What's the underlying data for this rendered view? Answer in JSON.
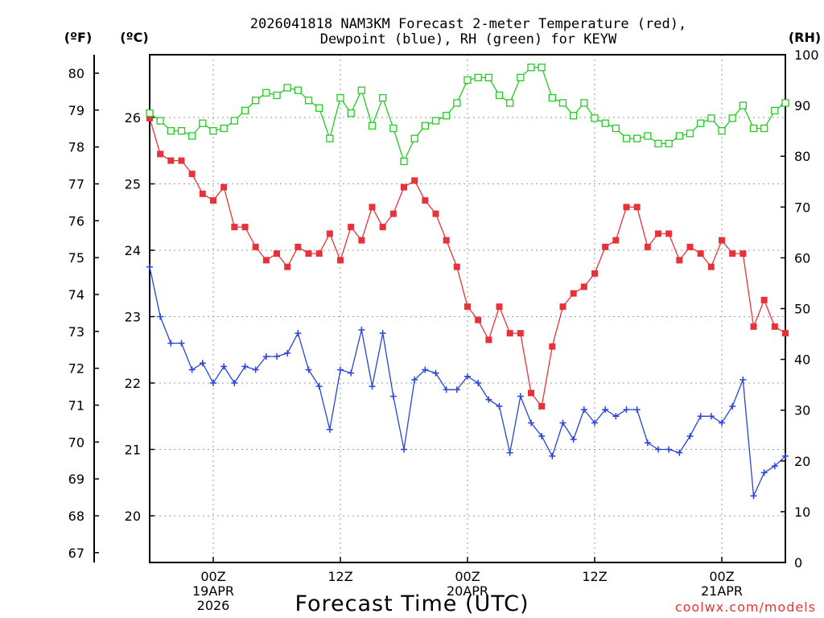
{
  "chart_data": {
    "type": "line",
    "title_lines": [
      "2026041818 NAM3KM Forecast 2-meter Temperature (red),",
      "Dewpoint (blue), RH (green) for KEYW"
    ],
    "xlabel": "Forecast Time (UTC)",
    "credit": "coolwx.com/models",
    "units": {
      "fahrenheit": "(ºF)",
      "celsius": "(ºC)",
      "rh": "(RH)"
    },
    "x_ticks": [
      {
        "hour": 6,
        "lines": [
          "00Z",
          "19APR",
          "2026"
        ]
      },
      {
        "hour": 18,
        "lines": [
          "12Z"
        ]
      },
      {
        "hour": 30,
        "lines": [
          "00Z",
          "20APR"
        ]
      },
      {
        "hour": 42,
        "lines": [
          "12Z"
        ]
      },
      {
        "hour": 54,
        "lines": [
          "00Z",
          "21APR"
        ]
      }
    ],
    "x_range_hours": [
      0,
      60
    ],
    "y_celsius_range": [
      19.3,
      26.9
    ],
    "y_celsius_ticks": [
      20,
      21,
      22,
      23,
      24,
      25,
      26
    ],
    "y_fahrenheit_ticks": [
      67,
      68,
      69,
      70,
      71,
      72,
      73,
      74,
      75,
      76,
      77,
      78,
      79,
      80
    ],
    "y_rh_range": [
      0,
      100
    ],
    "y_rh_ticks": [
      0,
      10,
      20,
      30,
      40,
      50,
      60,
      70,
      80,
      90,
      100
    ],
    "grid": true,
    "time_step_hours": 1,
    "series": [
      {
        "name": "Temperature",
        "axis": "celsius",
        "color": "#e8323a",
        "marker": "filled-square",
        "values": [
          25.99,
          25.45,
          25.35,
          25.35,
          25.15,
          24.85,
          24.75,
          24.95,
          24.35,
          24.35,
          24.05,
          23.85,
          23.95,
          23.75,
          24.05,
          23.95,
          23.95,
          24.25,
          23.85,
          24.35,
          24.15,
          24.65,
          24.35,
          24.55,
          24.95,
          25.05,
          24.75,
          24.55,
          24.15,
          23.75,
          23.15,
          22.95,
          22.65,
          23.15,
          22.75,
          22.75,
          21.85,
          21.65,
          22.55,
          23.15,
          23.35,
          23.45,
          23.65,
          24.05,
          24.15,
          24.65,
          24.65,
          24.05,
          24.25,
          24.25,
          23.85,
          24.05,
          23.95,
          23.75,
          24.15,
          23.95,
          23.95,
          22.85,
          23.25,
          22.85,
          22.75
        ]
      },
      {
        "name": "Dewpoint",
        "axis": "celsius",
        "color": "#2844d8",
        "marker": "plus",
        "values": [
          23.75,
          23.0,
          22.6,
          22.6,
          22.2,
          22.3,
          22.0,
          22.25,
          22.0,
          22.25,
          22.2,
          22.4,
          22.4,
          22.45,
          22.75,
          22.2,
          21.95,
          21.3,
          22.2,
          22.15,
          22.8,
          21.95,
          22.75,
          21.8,
          21.0,
          22.05,
          22.2,
          22.15,
          21.9,
          21.9,
          22.1,
          22.0,
          21.75,
          21.65,
          20.95,
          21.8,
          21.4,
          21.2,
          20.9,
          21.4,
          21.15,
          21.6,
          21.4,
          21.6,
          21.5,
          21.6,
          21.6,
          21.1,
          21.0,
          21.0,
          20.95,
          21.2,
          21.5,
          21.5,
          21.4,
          21.65,
          22.05,
          20.3,
          20.65,
          20.75,
          20.9
        ]
      },
      {
        "name": "RH",
        "axis": "rh",
        "color": "#22cc22",
        "marker": "open-square",
        "values": [
          88.5,
          87.0,
          85.0,
          85.0,
          84.0,
          86.5,
          85.0,
          85.5,
          87.0,
          89.0,
          91.0,
          92.5,
          92.0,
          93.5,
          93.0,
          91.0,
          89.5,
          83.5,
          91.5,
          88.5,
          93.0,
          86.0,
          91.5,
          85.5,
          79.0,
          83.5,
          86.0,
          87.0,
          88.0,
          90.5,
          95.0,
          95.5,
          95.5,
          92.0,
          90.5,
          95.5,
          97.5,
          97.5,
          91.5,
          90.5,
          88.0,
          90.5,
          87.5,
          86.5,
          85.5,
          83.5,
          83.5,
          84.0,
          82.5,
          82.5,
          84.0,
          84.5,
          86.5,
          87.5,
          85.0,
          87.5,
          90.0,
          85.5,
          85.5,
          89.0,
          90.5
        ]
      }
    ]
  }
}
